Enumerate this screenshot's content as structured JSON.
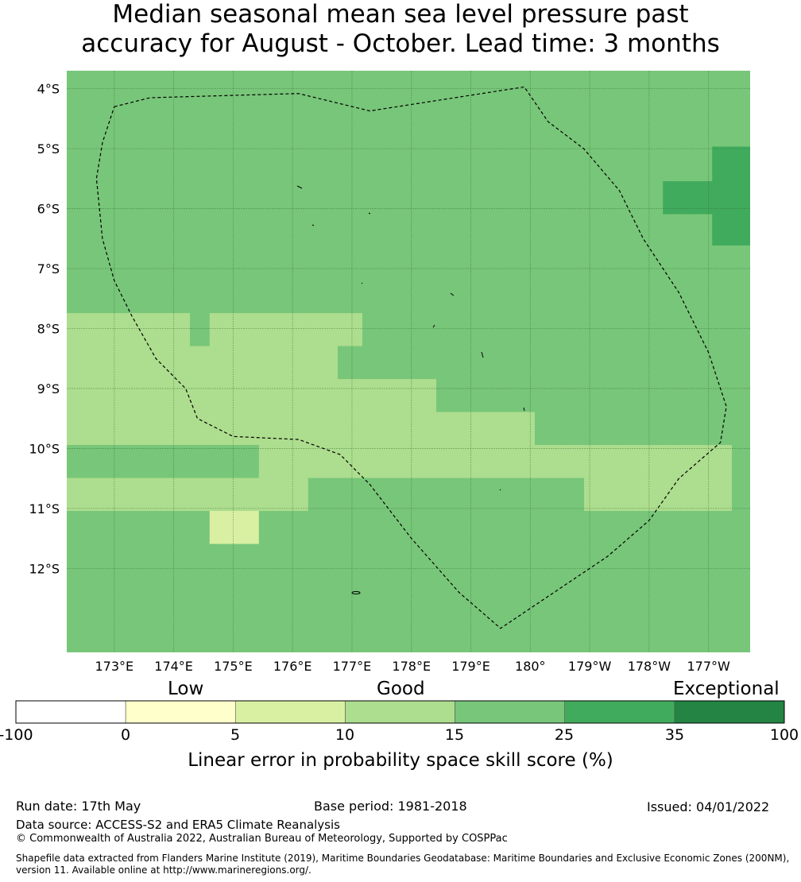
{
  "title": {
    "line1": "Median seasonal mean sea level pressure past",
    "line2": "accuracy for August - October. Lead time: 3 months"
  },
  "map": {
    "extent": {
      "lon_min": 172.2,
      "lon_max": 183.7,
      "lat_min": -13.4,
      "lat_max": -3.7
    },
    "grid_origin": {
      "lon": 172.2,
      "lat": -3.7
    },
    "lon_ticks": [
      "173°E",
      "174°E",
      "175°E",
      "176°E",
      "177°E",
      "178°E",
      "179°E",
      "180°",
      "179°W",
      "178°W",
      "177°W"
    ],
    "lat_ticks": [
      "4°S",
      "5°S",
      "6°S",
      "7°S",
      "8°S",
      "9°S",
      "10°S",
      "11°S",
      "12°S"
    ],
    "colors": [
      "#ffffff",
      "#ffffcc",
      "#d9f0a3",
      "#addd8e",
      "#78c679",
      "#41ab5d",
      "#238443"
    ],
    "background_category": 4,
    "cells": [
      {
        "col": 0.5,
        "row": 7.35,
        "w": 2.5,
        "h": 1.0,
        "cat": 3
      },
      {
        "col": 3.4,
        "row": 7.35,
        "w": 3.1,
        "h": 1.0,
        "cat": 3
      },
      {
        "col": 0.5,
        "row": 8.35,
        "w": 5.5,
        "h": 1.0,
        "cat": 3
      },
      {
        "col": 0.5,
        "row": 9.35,
        "w": 7.5,
        "h": 1.0,
        "cat": 3
      },
      {
        "col": 0.5,
        "row": 10.35,
        "w": 9.5,
        "h": 1.0,
        "cat": 3
      },
      {
        "col": 4.4,
        "row": 11.35,
        "w": 9.6,
        "h": 1.0,
        "cat": 3
      },
      {
        "col": 0.5,
        "row": 12.35,
        "w": 4.9,
        "h": 1.0,
        "cat": 3
      },
      {
        "col": 11.0,
        "row": 12.35,
        "w": 3.0,
        "h": 1.0,
        "cat": 3
      },
      {
        "col": 3.4,
        "row": 13.35,
        "w": 1.0,
        "h": 1.0,
        "cat": 2
      },
      {
        "col": 13.6,
        "row": 2.3,
        "w": 1.0,
        "h": 3.0,
        "cat": 5
      },
      {
        "col": 12.6,
        "row": 3.35,
        "w": 3.0,
        "h": 1.0,
        "cat": 5
      }
    ],
    "eez_line": [
      [
        173.0,
        -4.3
      ],
      [
        173.6,
        -4.15
      ],
      [
        176.1,
        -4.08
      ],
      [
        177.3,
        -4.37
      ],
      [
        179.9,
        -3.97
      ],
      [
        180.3,
        -4.55
      ],
      [
        180.9,
        -5.0
      ],
      [
        181.5,
        -5.7
      ],
      [
        181.9,
        -6.5
      ],
      [
        182.5,
        -7.4
      ],
      [
        183.0,
        -8.4
      ],
      [
        183.3,
        -9.3
      ],
      [
        183.2,
        -9.9
      ],
      [
        182.5,
        -10.5
      ],
      [
        182.0,
        -11.2
      ],
      [
        181.3,
        -11.8
      ],
      [
        179.5,
        -13.0
      ],
      [
        178.8,
        -12.4
      ],
      [
        178.0,
        -11.5
      ],
      [
        177.3,
        -10.6
      ],
      [
        176.8,
        -10.1
      ],
      [
        176.1,
        -9.85
      ],
      [
        175.0,
        -9.8
      ],
      [
        174.4,
        -9.5
      ],
      [
        174.2,
        -9.0
      ],
      [
        173.7,
        -8.5
      ],
      [
        173.3,
        -7.8
      ],
      [
        173.0,
        -7.2
      ],
      [
        172.8,
        -6.5
      ],
      [
        172.7,
        -5.5
      ],
      [
        172.8,
        -4.9
      ],
      [
        173.0,
        -4.3
      ]
    ]
  },
  "colorbar": {
    "categories": [
      "Low",
      "Good",
      "Exceptional"
    ],
    "ticks": [
      "-100",
      "0",
      "5",
      "10",
      "15",
      "25",
      "35",
      "100"
    ],
    "label": "Linear error in probability space skill score (%)"
  },
  "footer": {
    "run_date": "Run date: 17th May",
    "base_period": "Base period: 1981-2018",
    "issued": "Issued: 04/01/2022",
    "data_source": "Data source: ACCESS-S2 and ERA5 Climate Reanalysis",
    "copyright": "© Commonwealth of Australia 2022, Australian Bureau of Meteorology, Supported by COSPPac",
    "shapefile_line1": "Shapefile data extracted from Flanders Marine Institute (2019), Maritime Boundaries Geodatabase: Maritime Boundaries and Exclusive Economic Zones (200NM),",
    "shapefile_line2": "version 11. Available online at http://www.marineregions.org/."
  }
}
